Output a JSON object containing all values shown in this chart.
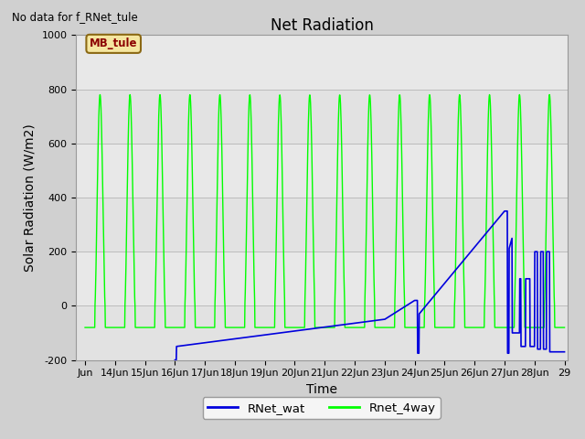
{
  "title": "Net Radiation",
  "ylabel": "Solar Radiation (W/m2)",
  "xlabel": "Time",
  "no_data_text": "No data for f_RNet_tule",
  "mb_tule_label": "MB_tule",
  "legend_labels": [
    "RNet_wat",
    "Rnet_4way"
  ],
  "legend_colors": [
    "#0000dd",
    "#00ff00"
  ],
  "ylim": [
    -200,
    1000
  ],
  "ytick_values": [
    -200,
    0,
    200,
    400,
    600,
    800,
    1000
  ],
  "xtick_labels": [
    "Jun",
    "14Jun",
    "15Jun",
    "16Jun",
    "17Jun",
    "18Jun",
    "19Jun",
    "20Jun",
    "21Jun",
    "22Jun",
    "23Jun",
    "24Jun",
    "25Jun",
    "26Jun",
    "27Jun",
    "28Jun",
    "29"
  ],
  "title_fontsize": 12,
  "label_fontsize": 10,
  "tick_fontsize": 8,
  "fig_bg": "#d0d0d0",
  "plot_bg": "#e8e8e8"
}
